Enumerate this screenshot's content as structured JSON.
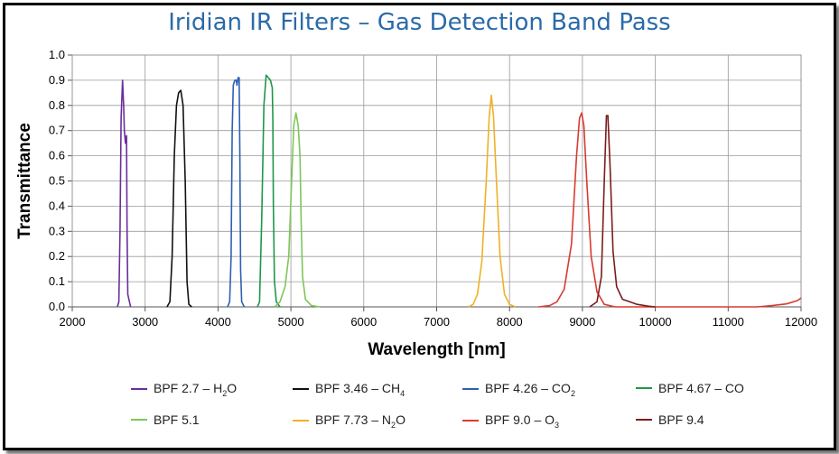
{
  "chart_data": {
    "type": "line",
    "title": "Iridian IR Filters – Gas Detection Band Pass",
    "xlabel": "Wavelength [nm]",
    "ylabel": "Transmittance",
    "xlim": [
      2000,
      12000
    ],
    "ylim": [
      0,
      1.0
    ],
    "x_ticks": [
      "2000",
      "3000",
      "4000",
      "5000",
      "6000",
      "7000",
      "8000",
      "9000",
      "10000",
      "11000",
      "12000"
    ],
    "y_ticks": [
      "0.0",
      "0.1",
      "0.2",
      "0.3",
      "0.4",
      "0.5",
      "0.6",
      "0.7",
      "0.8",
      "0.9",
      "1.0"
    ],
    "grid": true,
    "legend_position": "bottom",
    "series": [
      {
        "name": "BPF 2.7 – H₂O",
        "color": "#6a2d9e",
        "points": [
          [
            2620,
            0
          ],
          [
            2640,
            0.02
          ],
          [
            2655,
            0.3
          ],
          [
            2670,
            0.75
          ],
          [
            2690,
            0.9
          ],
          [
            2705,
            0.8
          ],
          [
            2715,
            0.7
          ],
          [
            2730,
            0.65
          ],
          [
            2745,
            0.68
          ],
          [
            2752,
            0.3
          ],
          [
            2762,
            0.05
          ],
          [
            2800,
            0
          ]
        ]
      },
      {
        "name": "BPF 3.46 – CH₄",
        "color": "#111111",
        "points": [
          [
            3300,
            0
          ],
          [
            3340,
            0.02
          ],
          [
            3370,
            0.2
          ],
          [
            3400,
            0.6
          ],
          [
            3430,
            0.8
          ],
          [
            3460,
            0.85
          ],
          [
            3490,
            0.86
          ],
          [
            3520,
            0.8
          ],
          [
            3550,
            0.5
          ],
          [
            3575,
            0.1
          ],
          [
            3600,
            0.01
          ],
          [
            3640,
            0
          ]
        ]
      },
      {
        "name": "BPF 4.26 – CO₂",
        "color": "#2e5fb3",
        "points": [
          [
            4130,
            0
          ],
          [
            4160,
            0.02
          ],
          [
            4180,
            0.2
          ],
          [
            4195,
            0.7
          ],
          [
            4210,
            0.88
          ],
          [
            4230,
            0.9
          ],
          [
            4250,
            0.9
          ],
          [
            4260,
            0.88
          ],
          [
            4275,
            0.91
          ],
          [
            4290,
            0.91
          ],
          [
            4300,
            0.6
          ],
          [
            4310,
            0.15
          ],
          [
            4325,
            0.02
          ],
          [
            4360,
            0
          ]
        ]
      },
      {
        "name": "BPF 4.67 – CO",
        "color": "#20964a",
        "points": [
          [
            4540,
            0
          ],
          [
            4570,
            0.02
          ],
          [
            4600,
            0.35
          ],
          [
            4630,
            0.8
          ],
          [
            4660,
            0.92
          ],
          [
            4690,
            0.91
          ],
          [
            4720,
            0.9
          ],
          [
            4745,
            0.87
          ],
          [
            4752,
            0.75
          ],
          [
            4760,
            0.4
          ],
          [
            4775,
            0.1
          ],
          [
            4800,
            0.02
          ],
          [
            4850,
            0
          ]
        ]
      },
      {
        "name": "BPF 5.1",
        "color": "#7dc757",
        "points": [
          [
            4780,
            0
          ],
          [
            4850,
            0.02
          ],
          [
            4920,
            0.08
          ],
          [
            4970,
            0.2
          ],
          [
            5010,
            0.5
          ],
          [
            5040,
            0.72
          ],
          [
            5070,
            0.77
          ],
          [
            5100,
            0.72
          ],
          [
            5125,
            0.6
          ],
          [
            5140,
            0.35
          ],
          [
            5160,
            0.12
          ],
          [
            5200,
            0.03
          ],
          [
            5280,
            0.005
          ],
          [
            5400,
            0
          ]
        ]
      },
      {
        "name": "BPF 7.73 – N₂O",
        "color": "#f0b125",
        "points": [
          [
            7440,
            0
          ],
          [
            7500,
            0.01
          ],
          [
            7560,
            0.05
          ],
          [
            7620,
            0.18
          ],
          [
            7680,
            0.5
          ],
          [
            7720,
            0.75
          ],
          [
            7750,
            0.84
          ],
          [
            7780,
            0.76
          ],
          [
            7820,
            0.5
          ],
          [
            7870,
            0.2
          ],
          [
            7930,
            0.05
          ],
          [
            8000,
            0.01
          ],
          [
            8080,
            0
          ]
        ]
      },
      {
        "name": "BPF 9.0 – O₃",
        "color": "#d93a30",
        "points": [
          [
            8400,
            0
          ],
          [
            8550,
            0.005
          ],
          [
            8650,
            0.02
          ],
          [
            8750,
            0.07
          ],
          [
            8850,
            0.25
          ],
          [
            8920,
            0.6
          ],
          [
            8960,
            0.75
          ],
          [
            8990,
            0.77
          ],
          [
            9020,
            0.72
          ],
          [
            9060,
            0.5
          ],
          [
            9120,
            0.2
          ],
          [
            9200,
            0.06
          ],
          [
            9300,
            0.01
          ],
          [
            9450,
            0
          ],
          [
            11400,
            0
          ],
          [
            11600,
            0.005
          ],
          [
            11800,
            0.012
          ],
          [
            11950,
            0.025
          ],
          [
            12000,
            0.035
          ]
        ]
      },
      {
        "name": "BPF 9.4",
        "color": "#7a1d1d",
        "points": [
          [
            9100,
            0
          ],
          [
            9200,
            0.02
          ],
          [
            9260,
            0.12
          ],
          [
            9300,
            0.5
          ],
          [
            9330,
            0.76
          ],
          [
            9350,
            0.76
          ],
          [
            9380,
            0.55
          ],
          [
            9420,
            0.22
          ],
          [
            9470,
            0.08
          ],
          [
            9550,
            0.03
          ],
          [
            9650,
            0.02
          ],
          [
            9750,
            0.01
          ],
          [
            9900,
            0.003
          ],
          [
            10000,
            0
          ]
        ]
      }
    ]
  },
  "legend": [
    {
      "label": "BPF 2.7 – H",
      "sub": "2",
      "tail": "O",
      "color": "#6a2d9e"
    },
    {
      "label": "BPF 3.46 – CH",
      "sub": "4",
      "tail": "",
      "color": "#111111"
    },
    {
      "label": "BPF 4.26 – CO",
      "sub": "2",
      "tail": "",
      "color": "#2e5fb3"
    },
    {
      "label": "BPF 4.67 – CO",
      "sub": "",
      "tail": "",
      "color": "#20964a"
    },
    {
      "label": "BPF 5.1",
      "sub": "",
      "tail": "",
      "color": "#7dc757"
    },
    {
      "label": "BPF 7.73 – N",
      "sub": "2",
      "tail": "O",
      "color": "#f0b125"
    },
    {
      "label": "BPF 9.0 – O",
      "sub": "3",
      "tail": "",
      "color": "#d93a30"
    },
    {
      "label": "BPF 9.4",
      "sub": "",
      "tail": "",
      "color": "#7a1d1d"
    }
  ]
}
